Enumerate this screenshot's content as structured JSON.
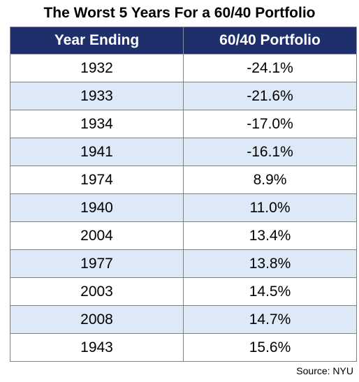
{
  "title": "The Worst 5 Years For a 60/40 Portfolio",
  "source": "Source: NYU",
  "chart_data": {
    "type": "table",
    "title": "The Worst 5 Years For a 60/40 Portfolio",
    "columns": [
      "Year Ending",
      "60/40 Portfolio"
    ],
    "rows": [
      {
        "year": "1932",
        "return": "-24.1%"
      },
      {
        "year": "1933",
        "return": "-21.6%"
      },
      {
        "year": "1934",
        "return": "-17.0%"
      },
      {
        "year": "1941",
        "return": "-16.1%"
      },
      {
        "year": "1974",
        "return": "8.9%"
      },
      {
        "year": "1940",
        "return": "11.0%"
      },
      {
        "year": "2004",
        "return": "13.4%"
      },
      {
        "year": "1977",
        "return": "13.8%"
      },
      {
        "year": "2003",
        "return": "14.5%"
      },
      {
        "year": "2008",
        "return": "14.7%"
      },
      {
        "year": "1943",
        "return": "15.6%"
      }
    ]
  },
  "colors": {
    "header_background": "#1f2f6b",
    "header_text": "#ffffff",
    "stripe": "#dde9f6"
  }
}
